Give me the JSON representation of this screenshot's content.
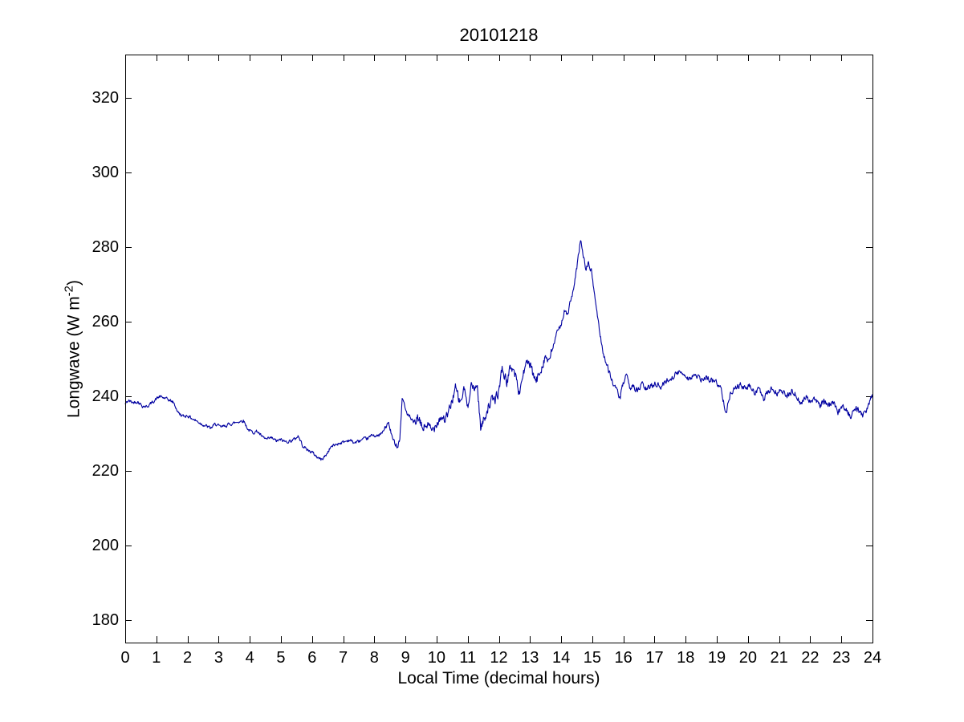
{
  "chart_data": {
    "type": "line",
    "title": "20101218",
    "xlabel": "Local Time (decimal hours)",
    "ylabel_base": "Longwave (W m",
    "ylabel_sup": "-2",
    "ylabel_close": ")",
    "xlim": [
      0,
      24
    ],
    "ylim": [
      174,
      331.5
    ],
    "xticks": [
      0,
      1,
      2,
      3,
      4,
      5,
      6,
      7,
      8,
      9,
      10,
      11,
      12,
      13,
      14,
      15,
      16,
      17,
      18,
      19,
      20,
      21,
      22,
      23,
      24
    ],
    "yticks": [
      180,
      200,
      220,
      240,
      260,
      280,
      300,
      320
    ],
    "grid": false,
    "legend_position": "none",
    "line_color": "#0000A0",
    "axis_color": "#000000",
    "background_color": "#FFFFFF",
    "series": [
      {
        "name": "longwave",
        "x": [
          0.0,
          0.1,
          0.25,
          0.4,
          0.55,
          0.7,
          0.85,
          1.0,
          1.1,
          1.25,
          1.4,
          1.55,
          1.7,
          1.85,
          2.0,
          2.15,
          2.3,
          2.45,
          2.6,
          2.75,
          2.9,
          3.05,
          3.2,
          3.35,
          3.5,
          3.65,
          3.8,
          3.95,
          4.1,
          4.25,
          4.4,
          4.55,
          4.7,
          4.85,
          5.0,
          5.15,
          5.3,
          5.45,
          5.55,
          5.7,
          5.85,
          6.0,
          6.15,
          6.3,
          6.45,
          6.6,
          6.75,
          6.9,
          7.05,
          7.2,
          7.35,
          7.5,
          7.65,
          7.8,
          7.95,
          8.1,
          8.25,
          8.45,
          8.6,
          8.75,
          8.82,
          8.9,
          9.0,
          9.1,
          9.25,
          9.4,
          9.55,
          9.7,
          9.85,
          10.0,
          10.15,
          10.3,
          10.45,
          10.6,
          10.75,
          10.9,
          11.0,
          11.1,
          11.2,
          11.3,
          11.42,
          11.5,
          11.62,
          11.75,
          11.9,
          12.0,
          12.1,
          12.25,
          12.4,
          12.55,
          12.65,
          12.8,
          12.95,
          13.1,
          13.2,
          13.35,
          13.5,
          13.6,
          13.75,
          13.9,
          14.0,
          14.1,
          14.2,
          14.3,
          14.4,
          14.5,
          14.62,
          14.7,
          14.78,
          14.88,
          14.97,
          15.07,
          15.2,
          15.32,
          15.45,
          15.57,
          15.7,
          15.8,
          15.9,
          16.0,
          16.1,
          16.2,
          16.3,
          16.45,
          16.6,
          16.75,
          16.9,
          17.05,
          17.2,
          17.35,
          17.5,
          17.65,
          17.8,
          17.95,
          18.1,
          18.25,
          18.4,
          18.55,
          18.7,
          18.85,
          19.0,
          19.15,
          19.3,
          19.45,
          19.6,
          19.75,
          19.9,
          20.05,
          20.2,
          20.35,
          20.5,
          20.65,
          20.8,
          20.95,
          21.1,
          21.25,
          21.4,
          21.55,
          21.7,
          21.85,
          22.0,
          22.15,
          22.3,
          22.45,
          22.6,
          22.75,
          22.9,
          23.05,
          23.2,
          23.3,
          23.45,
          23.55,
          23.7,
          23.85,
          23.95,
          24.0
        ],
        "y": [
          237.9,
          238.8,
          238.3,
          238.6,
          237.4,
          237.2,
          238.2,
          239.3,
          239.9,
          239.5,
          239.0,
          238.3,
          235.6,
          234.6,
          234.8,
          234.0,
          233.3,
          232.6,
          232.0,
          231.4,
          232.6,
          231.7,
          232.0,
          232.5,
          232.8,
          233.2,
          233.5,
          231.0,
          230.3,
          230.6,
          229.0,
          228.4,
          228.8,
          228.0,
          228.3,
          227.8,
          228.0,
          228.5,
          229.4,
          226.8,
          225.6,
          225.0,
          223.8,
          223.0,
          224.2,
          226.4,
          227.0,
          227.5,
          227.8,
          228.3,
          227.5,
          227.9,
          228.4,
          228.7,
          229.7,
          229.2,
          230.1,
          232.9,
          228.2,
          226.6,
          228.8,
          239.9,
          236.4,
          234.8,
          232.8,
          233.9,
          231.4,
          232.4,
          230.6,
          233.1,
          234.5,
          233.7,
          237.3,
          242.3,
          238.1,
          242.0,
          236.3,
          244.0,
          241.2,
          243.6,
          231.2,
          233.3,
          236.4,
          238.6,
          239.3,
          241.3,
          247.7,
          243.6,
          248.3,
          245.2,
          240.6,
          246.8,
          249.4,
          245.6,
          243.8,
          247.4,
          250.9,
          248.6,
          253.8,
          257.4,
          259.6,
          262.6,
          261.7,
          265.4,
          268.2,
          274.0,
          281.8,
          278.5,
          274.0,
          275.6,
          273.4,
          267.5,
          259.5,
          253.0,
          248.5,
          246.0,
          242.6,
          241.2,
          239.6,
          243.6,
          245.4,
          241.9,
          243.1,
          241.3,
          243.2,
          241.7,
          242.9,
          243.5,
          242.3,
          244.0,
          244.6,
          245.7,
          246.4,
          246.1,
          244.6,
          245.7,
          244.9,
          244.3,
          244.8,
          244.2,
          243.7,
          241.6,
          235.6,
          241.2,
          242.5,
          242.9,
          242.0,
          242.7,
          240.9,
          242.1,
          238.9,
          241.4,
          241.9,
          240.7,
          241.6,
          239.8,
          241.2,
          240.4,
          237.7,
          240.1,
          238.6,
          239.5,
          237.4,
          238.7,
          237.6,
          238.0,
          235.5,
          237.7,
          236.1,
          234.4,
          236.8,
          236.4,
          234.7,
          237.1,
          239.3,
          240.1
        ]
      }
    ]
  }
}
